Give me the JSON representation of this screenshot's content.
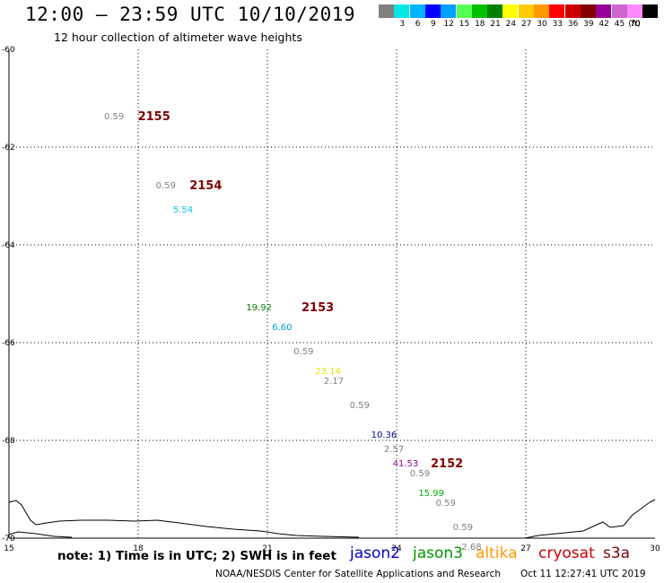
{
  "header": {
    "title": "12:00 – 23:59 UTC 10/10/2019",
    "subtitle": "12 hour collection of altimeter wave heights"
  },
  "color_scale": {
    "unit_label": "(ft)",
    "bins": [
      {
        "label": "",
        "color": "#808080"
      },
      {
        "label": "3",
        "color": "#00e6e6"
      },
      {
        "label": "6",
        "color": "#00b4ff"
      },
      {
        "label": "9",
        "color": "#0000ff"
      },
      {
        "label": "12",
        "color": "#00a0ff"
      },
      {
        "label": "15",
        "color": "#55ff55"
      },
      {
        "label": "18",
        "color": "#00c000"
      },
      {
        "label": "21",
        "color": "#008000"
      },
      {
        "label": "24",
        "color": "#ffff00"
      },
      {
        "label": "27",
        "color": "#ffcc00"
      },
      {
        "label": "30",
        "color": "#ff9900"
      },
      {
        "label": "33",
        "color": "#ff0000"
      },
      {
        "label": "36",
        "color": "#cc0000"
      },
      {
        "label": "39",
        "color": "#800000"
      },
      {
        "label": "42",
        "color": "#990099"
      },
      {
        "label": "45",
        "color": "#cc66cc"
      },
      {
        "label": "70",
        "color": "#ff88ff"
      },
      {
        "label": "",
        "color": "#000000"
      }
    ]
  },
  "map": {
    "lon_range": [
      15,
      30
    ],
    "lat_range": [
      -70,
      -60
    ],
    "lon_ticks": [
      "15",
      "18",
      "21",
      "24",
      "27",
      "30"
    ],
    "lat_ticks": [
      "-60",
      "-62",
      "-64",
      "-66",
      "-68",
      "-70"
    ],
    "grid": "dotted"
  },
  "passes": [
    {
      "label": "2155",
      "lon": 18.2,
      "lat": -61.4,
      "color": "#800000"
    },
    {
      "label": "2154",
      "lon": 19.4,
      "lat": -62.8,
      "color": "#800000"
    },
    {
      "label": "2153",
      "lon": 22.0,
      "lat": -65.3,
      "color": "#800000"
    },
    {
      "label": "2152",
      "lon": 25.0,
      "lat": -68.5,
      "color": "#800000"
    }
  ],
  "observations": [
    {
      "value": "0.59",
      "lon": 17.5,
      "lat": -61.4,
      "color": "#808080"
    },
    {
      "value": "0.59",
      "lon": 18.7,
      "lat": -62.8,
      "color": "#808080"
    },
    {
      "value": "5.54",
      "lon": 19.1,
      "lat": -63.3,
      "color": "#00c8e6"
    },
    {
      "value": "19.92",
      "lon": 20.8,
      "lat": -65.3,
      "color": "#008000"
    },
    {
      "value": "6.60",
      "lon": 21.4,
      "lat": -65.7,
      "color": "#00a0e0"
    },
    {
      "value": "0.59",
      "lon": 21.9,
      "lat": -66.2,
      "color": "#808080"
    },
    {
      "value": "23.14",
      "lon": 22.4,
      "lat": -66.6,
      "color": "#e6e600"
    },
    {
      "value": "2.17",
      "lon": 22.6,
      "lat": -66.8,
      "color": "#808080"
    },
    {
      "value": "0.59",
      "lon": 23.2,
      "lat": -67.3,
      "color": "#808080"
    },
    {
      "value": "10.36",
      "lon": 23.7,
      "lat": -67.9,
      "color": "#000099"
    },
    {
      "value": "2.57",
      "lon": 24.0,
      "lat": -68.2,
      "color": "#808080"
    },
    {
      "value": "41.53",
      "lon": 24.2,
      "lat": -68.5,
      "color": "#990099"
    },
    {
      "value": "0.59",
      "lon": 24.6,
      "lat": -68.7,
      "color": "#808080"
    },
    {
      "value": "15.99",
      "lon": 24.8,
      "lat": -69.1,
      "color": "#00b000"
    },
    {
      "value": "0.59",
      "lon": 25.2,
      "lat": -69.3,
      "color": "#808080"
    },
    {
      "value": "0.59",
      "lon": 25.6,
      "lat": -69.8,
      "color": "#808080"
    },
    {
      "value": "2.68",
      "lon": 25.8,
      "lat": -70.2,
      "color": "#808080"
    }
  ],
  "footer": {
    "note": "note: 1) Time is in UTC; 2) SWH is in feet",
    "satellites": [
      {
        "name": "jason2",
        "color": "#0000cc"
      },
      {
        "name": "jason3",
        "color": "#009900"
      },
      {
        "name": "altika",
        "color": "#ff9900"
      },
      {
        "name": "cryosat",
        "color": "#cc0000"
      },
      {
        "name": "s3a",
        "color": "#800000"
      }
    ],
    "credit": "NOAA/NESDIS Center for Satellite Applications and Research",
    "timestamp": "Oct 11 12:27:41 UTC 2019"
  }
}
